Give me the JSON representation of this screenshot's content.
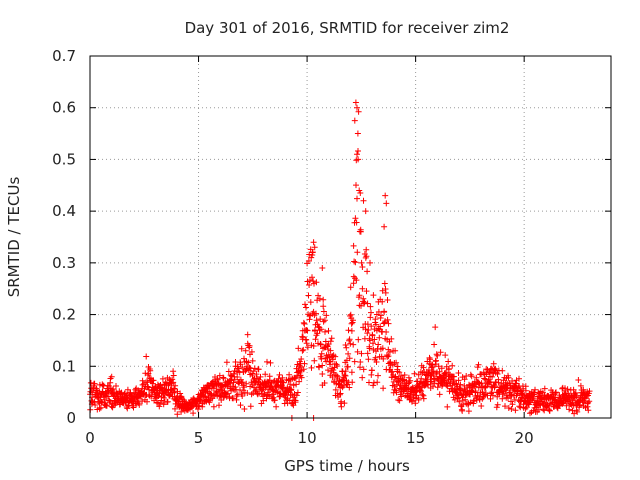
{
  "chart_data": {
    "type": "scatter",
    "title": "Day 301 of 2016, SRMTID for receiver zim2",
    "xlabel": "GPS time / hours",
    "ylabel": "SRMTID / TECUs",
    "xlim": [
      0,
      24
    ],
    "ylim": [
      0,
      0.7
    ],
    "xticks": [
      "0",
      "5",
      "10",
      "15",
      "20"
    ],
    "yticks": [
      "0",
      "0.1",
      "0.2",
      "0.3",
      "0.4",
      "0.5",
      "0.6",
      "0.7"
    ],
    "grid": true,
    "marker": "+",
    "color": "#ff0000",
    "series": [
      {
        "name": "zim2",
        "profile_x": [
          0,
          0.5,
          1,
          1.5,
          2,
          2.5,
          2.8,
          3,
          3.5,
          3.8,
          4,
          4.5,
          5,
          5.5,
          6,
          6.5,
          7,
          7.3,
          7.6,
          8,
          8.5,
          9,
          9.5,
          9.8,
          10,
          10.2,
          10.4,
          10.6,
          10.8,
          11,
          11.3,
          11.6,
          11.9,
          12.1,
          12.3,
          12.5,
          12.7,
          12.9,
          13.1,
          13.4,
          13.7,
          13.9,
          14.2,
          14.5,
          15,
          15.5,
          16,
          16.5,
          17,
          17.5,
          18,
          18.5,
          19,
          19.5,
          20,
          20.5,
          21,
          21.5,
          22,
          22.5,
          23
        ],
        "profile_mean": [
          0.04,
          0.045,
          0.045,
          0.035,
          0.035,
          0.05,
          0.07,
          0.045,
          0.05,
          0.07,
          0.03,
          0.02,
          0.035,
          0.05,
          0.06,
          0.06,
          0.09,
          0.1,
          0.07,
          0.06,
          0.055,
          0.055,
          0.06,
          0.12,
          0.2,
          0.24,
          0.2,
          0.15,
          0.14,
          0.11,
          0.09,
          0.06,
          0.09,
          0.22,
          0.34,
          0.25,
          0.2,
          0.14,
          0.13,
          0.18,
          0.15,
          0.1,
          0.07,
          0.06,
          0.05,
          0.08,
          0.09,
          0.07,
          0.05,
          0.05,
          0.06,
          0.07,
          0.06,
          0.05,
          0.04,
          0.035,
          0.03,
          0.035,
          0.035,
          0.035,
          0.035
        ],
        "profile_spread": [
          0.02,
          0.02,
          0.02,
          0.015,
          0.015,
          0.025,
          0.03,
          0.02,
          0.025,
          0.03,
          0.015,
          0.01,
          0.015,
          0.02,
          0.025,
          0.03,
          0.05,
          0.05,
          0.03,
          0.025,
          0.02,
          0.02,
          0.03,
          0.05,
          0.07,
          0.1,
          0.08,
          0.06,
          0.06,
          0.04,
          0.03,
          0.025,
          0.04,
          0.13,
          0.2,
          0.16,
          0.12,
          0.07,
          0.07,
          0.13,
          0.07,
          0.04,
          0.03,
          0.025,
          0.025,
          0.03,
          0.04,
          0.03,
          0.025,
          0.025,
          0.03,
          0.03,
          0.03,
          0.025,
          0.02,
          0.02,
          0.015,
          0.015,
          0.015,
          0.02,
          0.015
        ],
        "sample_count": 1800,
        "notable_points": [
          {
            "x": 12.25,
            "y": 0.61
          },
          {
            "x": 12.3,
            "y": 0.6
          },
          {
            "x": 12.2,
            "y": 0.575
          },
          {
            "x": 12.3,
            "y": 0.51
          },
          {
            "x": 12.35,
            "y": 0.5
          },
          {
            "x": 12.4,
            "y": 0.44
          },
          {
            "x": 12.45,
            "y": 0.435
          },
          {
            "x": 12.6,
            "y": 0.42
          },
          {
            "x": 12.7,
            "y": 0.4
          },
          {
            "x": 13.6,
            "y": 0.43
          },
          {
            "x": 13.65,
            "y": 0.415
          },
          {
            "x": 13.55,
            "y": 0.37
          },
          {
            "x": 10.3,
            "y": 0.34
          },
          {
            "x": 10.35,
            "y": 0.33
          },
          {
            "x": 10.25,
            "y": 0.32
          },
          {
            "x": 10.7,
            "y": 0.29
          },
          {
            "x": 12.9,
            "y": 0.3
          },
          {
            "x": 9.3,
            "y": 0.0
          },
          {
            "x": 10.3,
            "y": 0.0
          }
        ]
      }
    ]
  }
}
